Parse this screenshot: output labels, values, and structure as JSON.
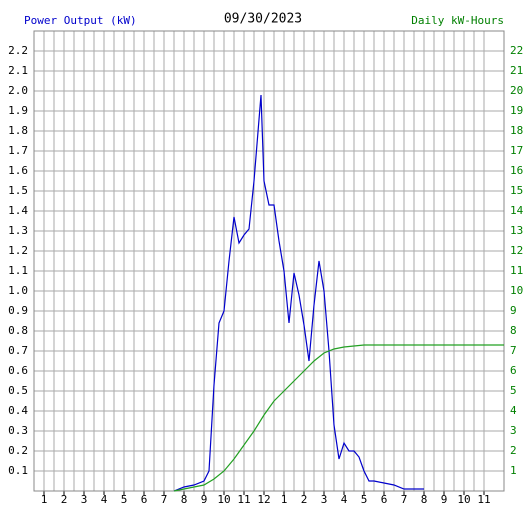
{
  "chart_data": {
    "type": "line",
    "title": "09/30/2023",
    "ylabel": "Power Output (kW)",
    "y2label": "Daily kW-Hours",
    "series": [
      {
        "name": "Power Output (kW)",
        "color": "#0000cc",
        "x": [
          7.5,
          8,
          8.5,
          9,
          9.25,
          9.5,
          9.75,
          10,
          10.25,
          10.5,
          10.75,
          11,
          11.25,
          11.5,
          11.85,
          12,
          12.25,
          12.5,
          12.75,
          13,
          13.25,
          13.5,
          13.75,
          14,
          14.25,
          14.5,
          14.75,
          15,
          15.25,
          15.5,
          15.75,
          16,
          16.25,
          16.5,
          16.75,
          17,
          17.25,
          17.5,
          18,
          18.5,
          19,
          19.5,
          20
        ],
        "values": [
          0,
          0.02,
          0.03,
          0.05,
          0.1,
          0.53,
          0.84,
          0.9,
          1.15,
          1.37,
          1.24,
          1.28,
          1.31,
          1.55,
          1.98,
          1.55,
          1.43,
          1.43,
          1.25,
          1.1,
          0.84,
          1.09,
          0.98,
          0.83,
          0.65,
          0.93,
          1.15,
          1.0,
          0.7,
          0.33,
          0.16,
          0.24,
          0.2,
          0.2,
          0.17,
          0.1,
          0.05,
          0.05,
          0.04,
          0.03,
          0.01,
          0.01,
          0.01
        ]
      },
      {
        "name": "Daily kW-Hours",
        "color": "#22a022",
        "axis": "y2",
        "x": [
          7.5,
          8,
          8.5,
          9,
          9.5,
          10,
          10.5,
          11,
          11.5,
          12,
          12.5,
          13,
          13.5,
          14,
          14.5,
          15,
          15.5,
          16,
          17,
          18,
          20,
          24
        ],
        "values": [
          0,
          0.1,
          0.2,
          0.3,
          0.6,
          1.0,
          1.6,
          2.3,
          3.0,
          3.8,
          4.5,
          5.0,
          5.5,
          6.0,
          6.5,
          6.9,
          7.1,
          7.2,
          7.3,
          7.3,
          7.3,
          7.3
        ]
      }
    ],
    "xlim": [
      0.5,
      24
    ],
    "xticks": [
      1,
      2,
      3,
      4,
      5,
      6,
      7,
      8,
      9,
      10,
      11,
      12,
      {
        "value": 13,
        "label": "1"
      },
      {
        "value": 14,
        "label": "2"
      },
      {
        "value": 15,
        "label": "3"
      },
      {
        "value": 16,
        "label": "4"
      },
      {
        "value": 17,
        "label": "5"
      },
      {
        "value": 18,
        "label": "6"
      },
      {
        "value": 19,
        "label": "7"
      },
      {
        "value": 20,
        "label": "8"
      },
      {
        "value": 21,
        "label": "9"
      },
      {
        "value": 22,
        "label": "10"
      },
      {
        "value": 23,
        "label": "11"
      }
    ],
    "ylim": [
      0,
      2.3
    ],
    "yticks": [
      0.1,
      0.2,
      0.3,
      0.4,
      0.5,
      0.6,
      0.7,
      0.8,
      0.9,
      {
        "value": 1,
        "label": "1.0"
      },
      1.1,
      1.2,
      1.3,
      1.4,
      1.5,
      1.6,
      1.7,
      1.8,
      1.9,
      {
        "value": 2,
        "label": "2.0"
      },
      2.1,
      2.2
    ],
    "y2lim": [
      0,
      23
    ],
    "y2ticks": [
      1,
      2,
      3,
      4,
      5,
      6,
      7,
      8,
      9,
      10,
      11,
      12,
      13,
      14,
      15,
      16,
      17,
      18,
      19,
      20,
      21,
      22
    ],
    "grid": true,
    "minor_grid": true
  }
}
